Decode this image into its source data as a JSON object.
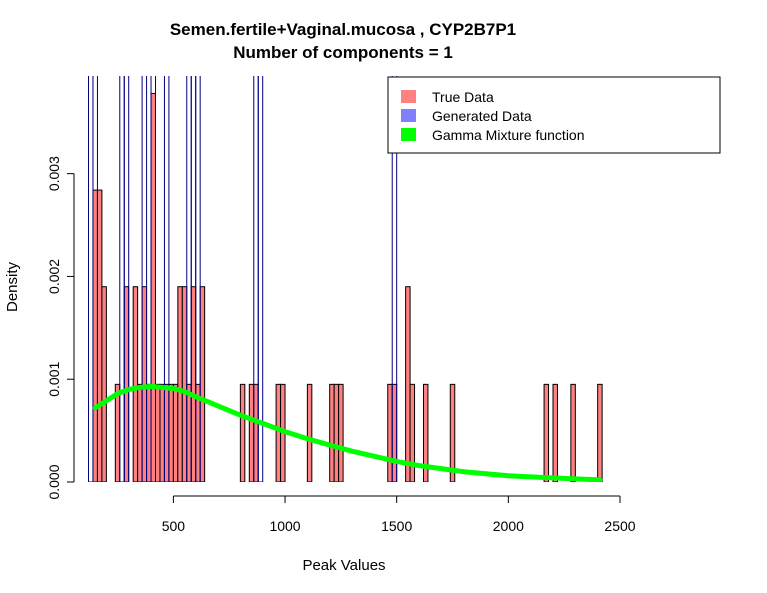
{
  "chart_data": {
    "type": "bar",
    "title": "Semen.fertile+Vaginal.mucosa , CYP2B7P1",
    "subtitle": "Number of components =  1",
    "xlabel": "Peak Values",
    "ylabel": "Density",
    "xlim": [
      55,
      2500
    ],
    "ylim": [
      0,
      0.00395
    ],
    "x_ticks": [
      500,
      1000,
      1500,
      2000,
      2500
    ],
    "y_ticks": [
      0.0,
      0.001,
      0.002,
      0.003
    ],
    "y_tick_labels": [
      "0.000",
      "0.001",
      "0.002",
      "0.003"
    ],
    "bin_width": 20,
    "legend": {
      "position": "top-right",
      "entries": [
        {
          "label": "True Data",
          "color": "#FF8080"
        },
        {
          "label": "Generated Data",
          "color": "#8080FF"
        },
        {
          "label": "Gamma Mixture function",
          "color": "#00FF00"
        }
      ]
    },
    "series": [
      {
        "name": "True Data",
        "color": "#FF8080",
        "bins": [
          [
            150,
            0.00284
          ],
          [
            170,
            0.00284
          ],
          [
            190,
            0.0019
          ],
          [
            250,
            0.00095
          ],
          [
            290,
            0.0019
          ],
          [
            330,
            0.0019
          ],
          [
            350,
            0.00095
          ],
          [
            370,
            0.0019
          ],
          [
            390,
            0.00095
          ],
          [
            410,
            0.00378
          ],
          [
            430,
            0.00095
          ],
          [
            450,
            0.00095
          ],
          [
            470,
            0.00095
          ],
          [
            490,
            0.00095
          ],
          [
            510,
            0.00095
          ],
          [
            530,
            0.0019
          ],
          [
            550,
            0.0019
          ],
          [
            570,
            0.00095
          ],
          [
            590,
            0.0019
          ],
          [
            610,
            0.00095
          ],
          [
            630,
            0.0019
          ],
          [
            810,
            0.00095
          ],
          [
            850,
            0.00095
          ],
          [
            870,
            0.00095
          ],
          [
            970,
            0.00095
          ],
          [
            990,
            0.00095
          ],
          [
            1110,
            0.00095
          ],
          [
            1210,
            0.00095
          ],
          [
            1230,
            0.00095
          ],
          [
            1250,
            0.00095
          ],
          [
            1470,
            0.00095
          ],
          [
            1490,
            0.00095
          ],
          [
            1550,
            0.0019
          ],
          [
            1570,
            0.00095
          ],
          [
            1630,
            0.00095
          ],
          [
            1750,
            0.00095
          ],
          [
            2170,
            0.00095
          ],
          [
            2210,
            0.00095
          ],
          [
            2290,
            0.00095
          ],
          [
            2410,
            0.00095
          ]
        ]
      },
      {
        "name": "Generated Data",
        "color": "#8080FF",
        "bins": [
          [
            130,
            0.0045
          ],
          [
            150,
            0.0045
          ],
          [
            270,
            0.0045
          ],
          [
            290,
            0.0045
          ],
          [
            370,
            0.0045
          ],
          [
            410,
            0.0045
          ],
          [
            470,
            0.0045
          ],
          [
            570,
            0.0045
          ],
          [
            590,
            0.0045
          ],
          [
            610,
            0.0045
          ],
          [
            870,
            0.0045
          ],
          [
            890,
            0.0045
          ],
          [
            1490,
            0.0045
          ]
        ]
      },
      {
        "name": "Gamma Mixture function",
        "type": "line",
        "color": "#00FF00",
        "x": [
          150,
          200,
          250,
          300,
          350,
          400,
          450,
          500,
          550,
          600,
          700,
          800,
          900,
          1000,
          1100,
          1200,
          1300,
          1400,
          1500,
          1600,
          1700,
          1800,
          1900,
          2000,
          2100,
          2200,
          2300,
          2410
        ],
        "y": [
          0.00072,
          0.00079,
          0.00086,
          0.0009,
          0.00092,
          0.00093,
          0.00092,
          0.00091,
          0.00088,
          0.00083,
          0.00074,
          0.00065,
          0.00057,
          0.00049,
          0.00042,
          0.00036,
          0.0003,
          0.00025,
          0.0002,
          0.00016,
          0.00013,
          0.0001,
          8e-05,
          6e-05,
          5e-05,
          4e-05,
          3e-05,
          2e-05
        ]
      }
    ]
  }
}
